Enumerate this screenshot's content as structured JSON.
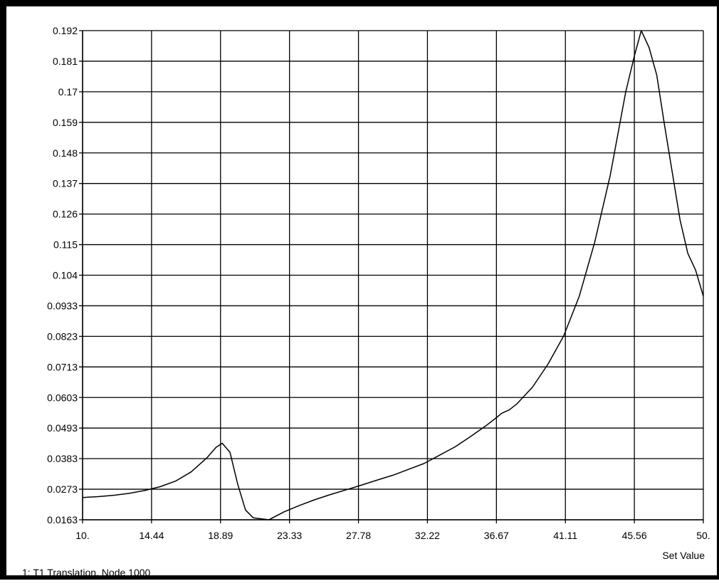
{
  "chart_data": {
    "type": "line",
    "title": "",
    "xlabel": "Set Value",
    "ylabel": "",
    "caption": "1: T1 Translation, Node 1000",
    "grid": true,
    "legend": "none",
    "xlim": [
      10,
      50
    ],
    "ylim": [
      0.0163,
      0.192
    ],
    "x_ticks": [
      "10.",
      "14.44",
      "18.89",
      "23.33",
      "27.78",
      "32.22",
      "36.67",
      "41.11",
      "45.56",
      "50."
    ],
    "y_ticks": [
      "0.192",
      "0.181",
      "0.17",
      "0.159",
      "0.148",
      "0.137",
      "0.126",
      "0.115",
      "0.104",
      "0.0933",
      "0.0823",
      "0.0713",
      "0.0603",
      "0.0493",
      "0.0383",
      "0.0273",
      "0.0163"
    ],
    "series": [
      {
        "color": "#000000",
        "x": [
          10,
          11,
          12,
          13,
          14,
          15,
          16,
          17,
          18,
          18.6,
          19,
          19.5,
          20,
          20.5,
          21,
          22,
          23,
          24,
          25,
          26,
          27,
          28,
          29,
          30,
          31,
          32,
          33,
          34,
          35,
          36,
          36.67,
          37,
          37.5,
          38,
          39,
          40,
          41,
          42,
          43,
          44,
          45,
          45.56,
          46,
          46.5,
          47,
          47.5,
          48,
          48.5,
          49,
          49.5,
          50
        ],
        "y": [
          0.0243,
          0.0246,
          0.0251,
          0.0258,
          0.0268,
          0.0282,
          0.0302,
          0.0335,
          0.0385,
          0.0423,
          0.0438,
          0.0405,
          0.029,
          0.0198,
          0.017,
          0.0163,
          0.0192,
          0.0215,
          0.0236,
          0.0254,
          0.0271,
          0.0288,
          0.0306,
          0.0323,
          0.0344,
          0.0365,
          0.0395,
          0.0425,
          0.0462,
          0.0501,
          0.053,
          0.0545,
          0.0558,
          0.058,
          0.064,
          0.0723,
          0.0823,
          0.0965,
          0.116,
          0.14,
          0.17,
          0.183,
          0.192,
          0.186,
          0.176,
          0.158,
          0.141,
          0.124,
          0.112,
          0.106,
          0.0966
        ]
      }
    ]
  }
}
